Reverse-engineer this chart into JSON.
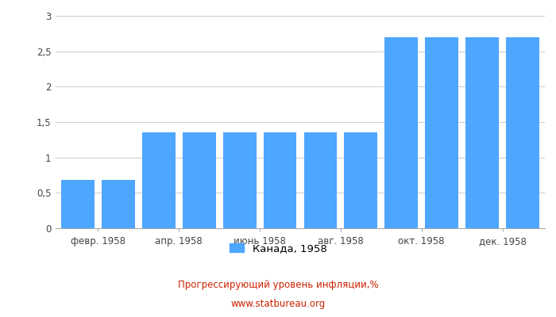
{
  "x_labels": [
    "февр. 1958",
    "апр. 1958",
    "июнь 1958",
    "авг. 1958",
    "окт. 1958",
    "дек. 1958"
  ],
  "values": [
    0.68,
    0.68,
    1.35,
    1.35,
    1.35,
    1.35,
    1.35,
    1.35,
    2.7,
    2.7,
    2.7,
    2.7
  ],
  "bar_color": "#4da6ff",
  "ylim": [
    0,
    3.0
  ],
  "yticks": [
    0,
    0.5,
    1.0,
    1.5,
    2.0,
    2.5,
    3.0
  ],
  "ytick_labels": [
    "0",
    "0,5",
    "1",
    "1,5",
    "2",
    "2,5",
    "3"
  ],
  "legend_label": "Канада, 1958",
  "title_line1": "Прогрессирующий уровень инфляции,%",
  "title_line2": "www.statbureau.org",
  "background_color": "#ffffff",
  "grid_color": "#d0d0d0",
  "title_color": "#cc2200"
}
